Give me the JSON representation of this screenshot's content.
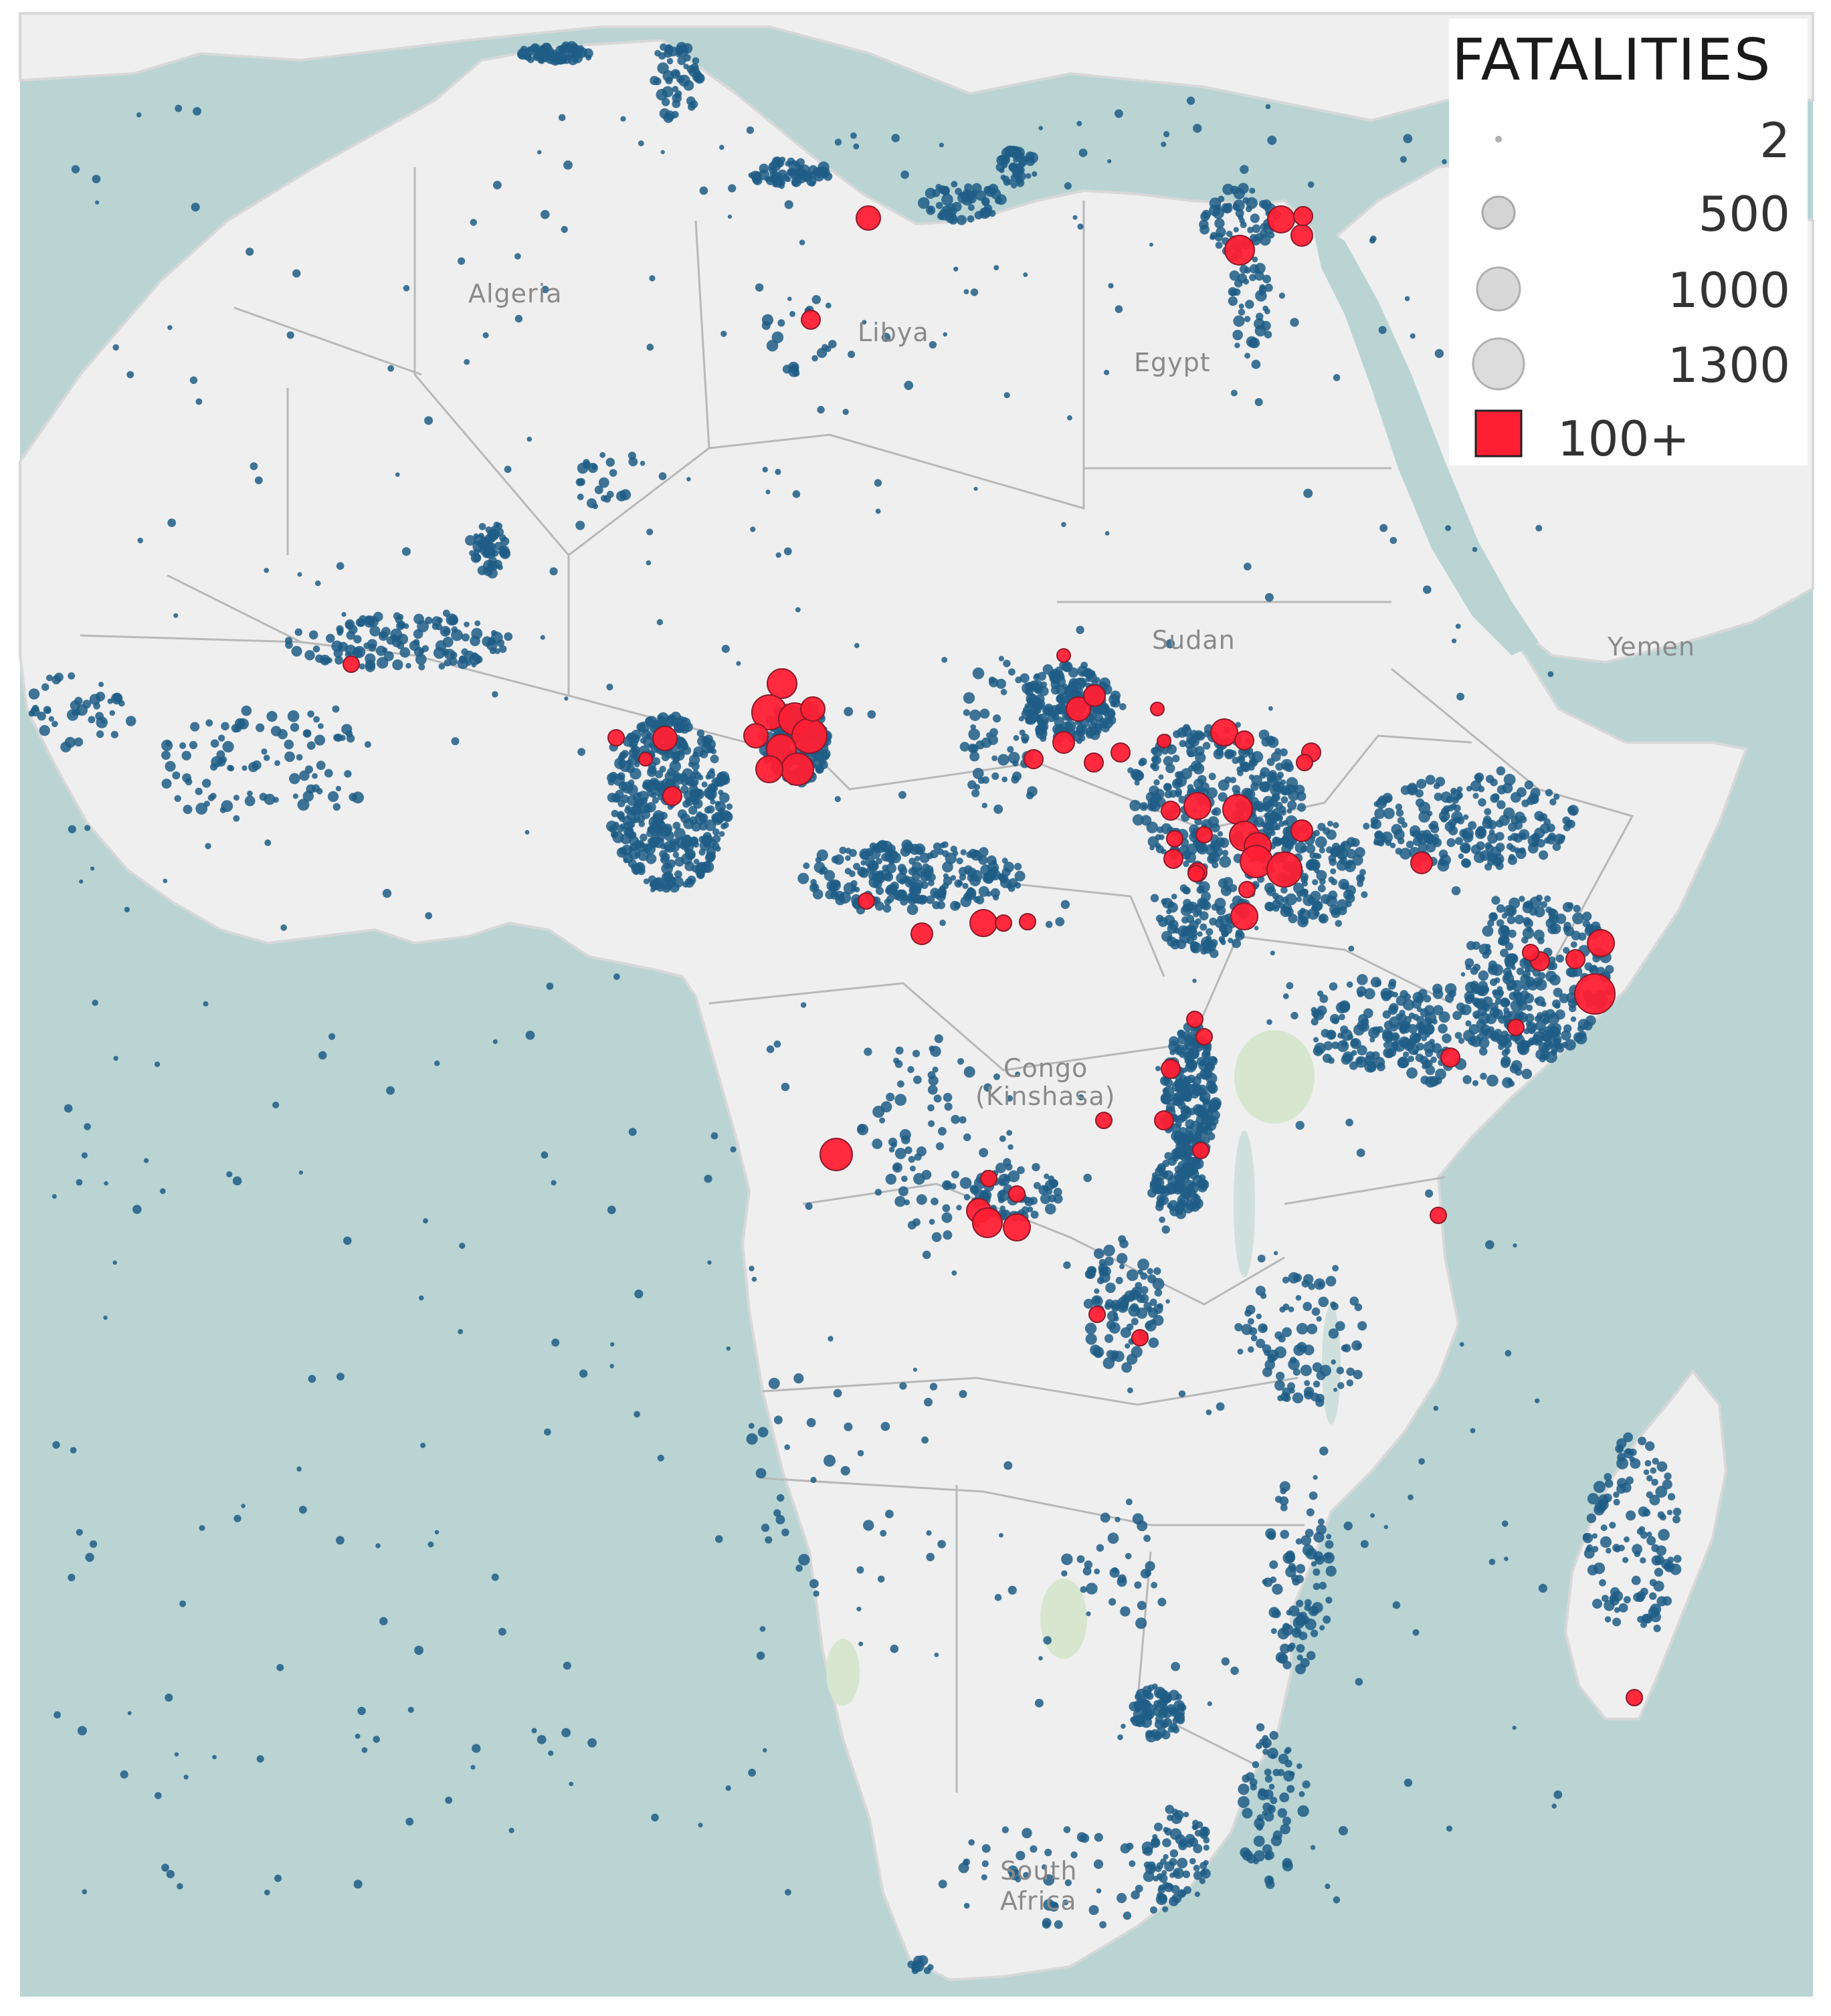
{
  "colors": {
    "sea": "#b9d4d3",
    "land": "#efefef",
    "border": "#b8b8b8",
    "event": "#1f5d86",
    "event_stroke": "#2f7aa8",
    "highlight": "#ff1f33",
    "highlight_stroke": "#8a1a2a",
    "park": "#d6e6cf"
  },
  "legend": {
    "title": "FATALITIES",
    "items": [
      {
        "label": "2",
        "size_value": 2
      },
      {
        "label": "500",
        "size_value": 500
      },
      {
        "label": "1000",
        "size_value": 1000
      },
      {
        "label": "1300",
        "size_value": 1300
      },
      {
        "label": "100+",
        "type": "red-square"
      }
    ]
  },
  "labels": {
    "algeria": "Algeria",
    "libya": "Libya",
    "egypt": "Egypt",
    "sudan": "Sudan",
    "yemen": "Yemen",
    "congo_line1": "Congo",
    "congo_line2": "(Kinshasa)",
    "south_africa_line1": "South",
    "south_africa_line2": "Africa"
  }
}
